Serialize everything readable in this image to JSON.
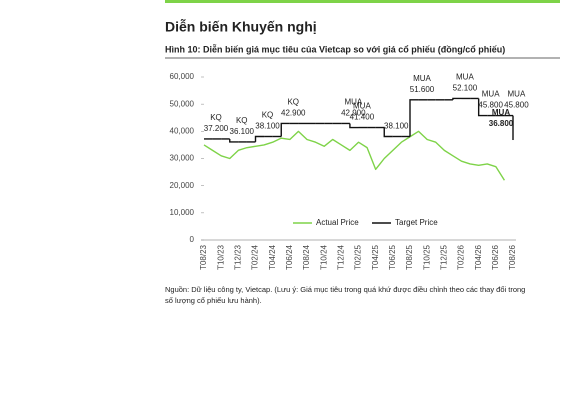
{
  "header": {
    "title": "Diễn biến Khuyến nghị",
    "caption": "Hình 10: Diễn biến giá mục tiêu của Vietcap so với giá cổ phiếu (đồng/cổ phiếu)"
  },
  "footer": {
    "source": [
      "Nguồn: Dữ liệu công ty, Vietcap. (Lưu ý: Giá mục tiêu trong quá khứ được điều chỉnh theo các thay đổi trong",
      "số lượng cổ phiếu lưu hành)."
    ]
  },
  "chart_data": {
    "type": "line",
    "categories": [
      "T08/23",
      null,
      "T10/23",
      null,
      "T12/23",
      null,
      "T02/24",
      null,
      "T04/24",
      null,
      "T06/24",
      null,
      "T08/24",
      null,
      "T10/24",
      null,
      "T12/24",
      null,
      "T02/25",
      null,
      "T04/25",
      null,
      "T06/25",
      null,
      "T08/25",
      null,
      "T10/25",
      null,
      "T12/25",
      null,
      "T02/26",
      null,
      "T04/26",
      null,
      "T06/26",
      null,
      "T08/26"
    ],
    "series": [
      {
        "name": "Actual Price",
        "color": "#7ed348",
        "values": [
          35000,
          33000,
          31000,
          30000,
          33000,
          34000,
          34500,
          35000,
          36000,
          37500,
          37000,
          40000,
          37000,
          36000,
          34500,
          37000,
          35000,
          33000,
          36000,
          34000,
          26000,
          30000,
          33000,
          36000,
          38000,
          40000,
          37000,
          36000,
          33000,
          31000,
          29000,
          28000,
          27500,
          28000,
          27000,
          22000,
          null
        ]
      },
      {
        "name": "Target Price",
        "color": "#111111",
        "step": "post",
        "values": [
          37200,
          37200,
          37200,
          36100,
          36100,
          36100,
          38100,
          38100,
          38100,
          42900,
          42900,
          42900,
          42900,
          42900,
          42900,
          42900,
          42900,
          41400,
          41400,
          41400,
          41400,
          38100,
          38100,
          38100,
          51600,
          51600,
          51600,
          51600,
          51600,
          52100,
          52100,
          52100,
          45800,
          45800,
          45800,
          45800,
          36800
        ],
        "value_labels": [
          "KQ 37.200",
          null,
          null,
          "KQ 36.100",
          null,
          null,
          "KQ 38.100",
          null,
          null,
          "KQ 42.900",
          null,
          null,
          null,
          null,
          null,
          null,
          "MUA 42.900",
          "MUA 41.400",
          null,
          null,
          null,
          "38.100",
          null,
          null,
          "MUA 51.600",
          null,
          null,
          null,
          null,
          "MUA 52.100",
          null,
          null,
          "MUA 45.800",
          null,
          null,
          "MUA 45.800",
          "MUA 36.800"
        ]
      }
    ],
    "ylim": [
      0,
      60000
    ],
    "yticks": [
      0,
      {
        "value": 10000,
        "label": "10,000"
      },
      {
        "value": 20000,
        "label": "20,000"
      },
      {
        "value": 30000,
        "label": "30,000"
      },
      {
        "value": 40000,
        "label": "40,000"
      },
      {
        "value": 50000,
        "label": "50,000"
      },
      {
        "value": 60000,
        "label": "60,000"
      }
    ],
    "grid": false,
    "legend": "bottom"
  }
}
